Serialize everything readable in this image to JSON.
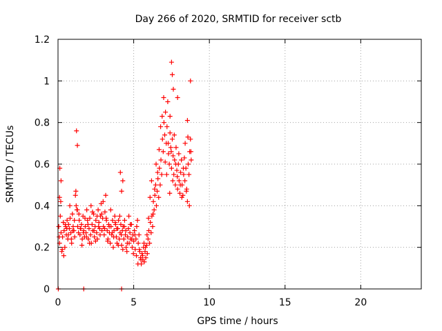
{
  "chart_data": {
    "type": "scatter",
    "title": "Day 266 of 2020, SRMTID for receiver sctb",
    "xlabel": "GPS time / hours",
    "ylabel": "SRMTID / TECUs",
    "xlim": [
      0,
      24
    ],
    "ylim": [
      0,
      1.2
    ],
    "xticks": [
      0,
      5,
      10,
      15,
      20
    ],
    "xtick_labels": [
      "0",
      "5",
      "10",
      "15",
      "20"
    ],
    "yticks": [
      0,
      0.2,
      0.4,
      0.6,
      0.8,
      1.0,
      1.2
    ],
    "ytick_labels": [
      "0",
      "0.2",
      "0.4",
      "0.6",
      "0.8",
      "1",
      "1.2"
    ],
    "grid": true,
    "marker": "+",
    "color": "#ff0000",
    "series": [
      {
        "name": "SRMTID",
        "x": [
          0.05,
          0.1,
          0.15,
          0.2,
          0.25,
          0.3,
          0.35,
          0.4,
          0.45,
          0.5,
          0.55,
          0.6,
          0.65,
          0.7,
          0.75,
          0.8,
          0.85,
          0.9,
          0.95,
          1.0,
          1.05,
          1.1,
          1.15,
          1.2,
          1.25,
          1.3,
          1.35,
          1.4,
          1.45,
          1.5,
          1.55,
          1.6,
          1.65,
          1.7,
          1.75,
          1.8,
          1.85,
          1.9,
          1.95,
          2.0,
          2.05,
          2.1,
          2.15,
          2.2,
          2.25,
          2.3,
          2.35,
          2.4,
          2.45,
          2.5,
          2.55,
          2.6,
          2.65,
          2.7,
          2.75,
          2.8,
          2.85,
          2.9,
          2.95,
          3.0,
          3.05,
          3.1,
          3.15,
          3.2,
          3.25,
          3.3,
          3.35,
          3.4,
          3.45,
          3.5,
          3.55,
          3.6,
          3.65,
          3.7,
          3.75,
          3.8,
          3.85,
          3.9,
          3.95,
          4.0,
          4.05,
          4.1,
          4.15,
          4.2,
          4.25,
          4.3,
          4.35,
          4.4,
          4.45,
          4.5,
          4.55,
          4.6,
          4.65,
          4.7,
          4.75,
          4.8,
          4.85,
          4.9,
          4.95,
          5.0,
          5.05,
          5.1,
          5.15,
          5.2,
          5.25,
          5.3,
          5.35,
          5.4,
          5.45,
          5.5,
          5.55,
          5.6,
          5.65,
          5.7,
          5.75,
          5.8,
          5.85,
          5.9,
          5.95,
          6.0,
          6.05,
          6.1,
          6.15,
          6.2,
          6.25,
          6.3,
          6.35,
          6.4,
          6.45,
          6.5,
          6.55,
          6.6,
          6.65,
          6.7,
          6.75,
          6.8,
          6.85,
          6.9,
          6.95,
          7.0,
          7.05,
          7.1,
          7.15,
          7.2,
          7.25,
          7.3,
          7.35,
          7.4,
          7.45,
          7.5,
          7.55,
          7.6,
          7.65,
          7.7,
          7.75,
          7.8,
          7.85,
          7.9,
          7.95,
          8.0,
          8.05,
          8.1,
          8.15,
          8.2,
          8.25,
          8.3,
          8.35,
          8.4,
          8.45,
          8.5,
          8.55,
          8.6,
          8.65,
          8.7,
          8.75,
          8.8,
          0.08,
          0.18,
          0.28,
          0.38,
          0.48,
          0.58,
          0.68,
          0.78,
          0.88,
          0.98,
          1.08,
          1.18,
          1.28,
          1.38,
          1.48,
          1.58,
          1.68,
          1.78,
          1.88,
          1.98,
          2.08,
          2.18,
          2.28,
          2.38,
          2.48,
          2.58,
          2.68,
          2.78,
          2.88,
          2.98,
          3.08,
          3.18,
          3.28,
          3.38,
          3.48,
          3.58,
          3.68,
          3.78,
          3.88,
          3.98,
          4.08,
          4.18,
          4.28,
          4.38,
          4.48,
          4.58,
          4.68,
          4.78,
          4.88,
          4.98,
          5.08,
          5.18,
          5.28,
          5.38,
          5.48,
          5.58,
          5.68,
          5.78,
          5.88,
          5.98,
          6.08,
          6.18,
          6.28,
          6.38,
          6.48,
          6.58,
          6.68,
          6.78,
          6.88,
          6.98,
          7.08,
          7.18,
          7.28,
          7.38,
          7.48,
          7.58,
          7.68,
          7.78,
          7.88,
          7.98,
          8.08,
          8.18,
          8.28,
          8.38,
          8.48,
          8.58,
          8.68,
          8.78,
          0.02,
          1.7,
          4.2,
          0.12,
          1.22,
          1.28,
          4.12,
          4.2,
          4.28,
          7.5,
          7.55,
          7.62,
          8.75,
          7.9,
          7.4,
          8.55,
          0.1,
          0.2
        ],
        "y": [
          0.3,
          0.22,
          0.35,
          0.27,
          0.18,
          0.25,
          0.32,
          0.28,
          0.2,
          0.3,
          0.26,
          0.33,
          0.24,
          0.31,
          0.29,
          0.34,
          0.27,
          0.22,
          0.36,
          0.3,
          0.28,
          0.25,
          0.45,
          0.4,
          0.38,
          0.3,
          0.27,
          0.33,
          0.26,
          0.29,
          0.31,
          0.24,
          0.35,
          0.28,
          0.25,
          0.3,
          0.27,
          0.38,
          0.33,
          0.24,
          0.29,
          0.34,
          0.26,
          0.22,
          0.31,
          0.28,
          0.36,
          0.25,
          0.3,
          0.33,
          0.27,
          0.24,
          0.38,
          0.32,
          0.29,
          0.35,
          0.41,
          0.28,
          0.34,
          0.3,
          0.26,
          0.37,
          0.45,
          0.33,
          0.28,
          0.24,
          0.31,
          0.27,
          0.22,
          0.3,
          0.26,
          0.33,
          0.2,
          0.28,
          0.35,
          0.31,
          0.25,
          0.22,
          0.29,
          0.33,
          0.24,
          0.27,
          0.31,
          0.21,
          0.28,
          0.3,
          0.24,
          0.33,
          0.26,
          0.2,
          0.18,
          0.25,
          0.29,
          0.22,
          0.27,
          0.24,
          0.31,
          0.2,
          0.26,
          0.23,
          0.28,
          0.19,
          0.24,
          0.3,
          0.33,
          0.22,
          0.26,
          0.18,
          0.15,
          0.12,
          0.17,
          0.14,
          0.2,
          0.13,
          0.18,
          0.15,
          0.21,
          0.17,
          0.24,
          0.28,
          0.22,
          0.32,
          0.27,
          0.35,
          0.3,
          0.42,
          0.38,
          0.45,
          0.5,
          0.4,
          0.47,
          0.53,
          0.44,
          0.58,
          0.5,
          0.62,
          0.55,
          0.72,
          0.66,
          0.8,
          0.74,
          0.85,
          0.7,
          0.78,
          0.9,
          0.65,
          0.6,
          0.75,
          0.68,
          0.58,
          0.72,
          0.64,
          0.55,
          0.62,
          0.5,
          0.68,
          0.57,
          0.48,
          0.6,
          0.52,
          0.46,
          0.56,
          0.62,
          0.5,
          0.45,
          0.55,
          0.63,
          0.7,
          0.58,
          0.48,
          0.42,
          0.6,
          0.55,
          0.66,
          0.72,
          0.62,
          0.25,
          0.42,
          0.19,
          0.16,
          0.31,
          0.29,
          0.26,
          0.4,
          0.24,
          0.28,
          0.33,
          0.47,
          0.38,
          0.36,
          0.29,
          0.21,
          0.27,
          0.34,
          0.25,
          0.31,
          0.22,
          0.4,
          0.37,
          0.28,
          0.23,
          0.35,
          0.3,
          0.26,
          0.36,
          0.42,
          0.29,
          0.34,
          0.23,
          0.3,
          0.38,
          0.27,
          0.25,
          0.32,
          0.29,
          0.21,
          0.35,
          0.26,
          0.19,
          0.3,
          0.28,
          0.22,
          0.35,
          0.31,
          0.24,
          0.17,
          0.26,
          0.16,
          0.12,
          0.19,
          0.14,
          0.16,
          0.22,
          0.2,
          0.26,
          0.34,
          0.44,
          0.52,
          0.36,
          0.48,
          0.6,
          0.56,
          0.67,
          0.78,
          0.83,
          0.92,
          0.61,
          0.55,
          0.7,
          0.46,
          0.66,
          0.52,
          0.74,
          0.6,
          0.54,
          0.65,
          0.5,
          0.44,
          0.58,
          0.52,
          0.47,
          0.73,
          0.4,
          0.66,
          0.0,
          0.0,
          0.0,
          0.58,
          0.76,
          0.69,
          0.56,
          0.47,
          0.52,
          1.09,
          1.03,
          0.96,
          1.0,
          0.92,
          0.83,
          0.81,
          0.44,
          0.52
        ]
      }
    ]
  }
}
